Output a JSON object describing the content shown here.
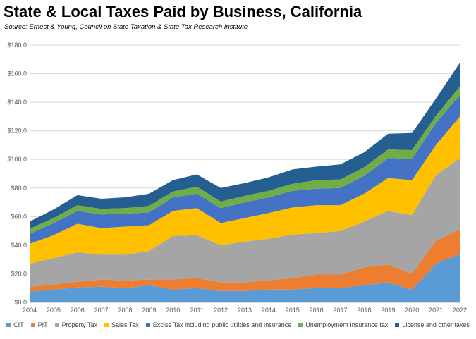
{
  "chart_data": {
    "type": "area",
    "stacked": true,
    "title": "State & Local Taxes Paid by Business, California",
    "subtitle": "Source:  Ernest & Young, Council on State Taxation & State Tax Research Institute",
    "xlabel": "",
    "ylabel": "",
    "ylim": [
      0,
      180
    ],
    "y_ticks": [
      "$0.0",
      "$20.0",
      "$40.0",
      "$60.0",
      "$80.0",
      "$100.0",
      "$120.0",
      "$140.0",
      "$160.0",
      "$180.0"
    ],
    "grid": true,
    "legend_position": "bottom",
    "categories": [
      "2004",
      "2005",
      "2006",
      "2007",
      "2008",
      "2009",
      "2010",
      "2011",
      "2012",
      "2013",
      "2014",
      "2015",
      "2016",
      "2017",
      "2018",
      "2019",
      "2020",
      "2021",
      "2022"
    ],
    "series": [
      {
        "name": "CIT",
        "color": "#5B9BD5",
        "values": [
          7.5,
          9,
          10.5,
          11,
          10,
          12,
          9,
          10,
          8,
          8,
          9,
          9,
          10,
          10,
          12,
          14,
          9,
          27,
          34
        ]
      },
      {
        "name": "PIT",
        "color": "#ED7D31",
        "values": [
          3.5,
          3.5,
          4,
          5,
          5.5,
          4,
          7,
          7,
          6,
          6,
          6.5,
          8,
          9.5,
          9.5,
          12.5,
          12.5,
          11,
          16,
          17
        ]
      },
      {
        "name": "Property Tax",
        "color": "#A5A5A5",
        "values": [
          16,
          18.5,
          20.5,
          17.5,
          18,
          20,
          30.5,
          30,
          26,
          28.5,
          29,
          30.5,
          29,
          30.5,
          32,
          37.5,
          41,
          46,
          50
        ]
      },
      {
        "name": "Sales Tax",
        "color": "#FFC000",
        "values": [
          14,
          16,
          20,
          18.5,
          19.5,
          18,
          17.5,
          19,
          15.5,
          16.5,
          18,
          19,
          19.5,
          18,
          19.5,
          23,
          24.5,
          21,
          29
        ]
      },
      {
        "name": "Excise Tax including public utilities and Insurance",
        "color": "#4472C4",
        "values": [
          7,
          8.5,
          9,
          9.5,
          9,
          9,
          9.5,
          10,
          10.5,
          11,
          11,
          11.5,
          11.5,
          12,
          12.5,
          14,
          15,
          15.5,
          15
        ]
      },
      {
        "name": "Unemployment Insurance tax",
        "color": "#70AD47",
        "values": [
          3.5,
          3.5,
          4,
          4,
          4,
          4.5,
          4,
          5,
          4.5,
          4.5,
          4.5,
          5,
          6,
          6,
          6,
          6,
          6,
          5,
          6
        ]
      },
      {
        "name": "License and other taxes",
        "color": "#255E91",
        "values": [
          5,
          6,
          7,
          7,
          7.5,
          8.5,
          8,
          8.5,
          9.5,
          9,
          9.5,
          10,
          9.5,
          10.5,
          10.5,
          11,
          12,
          12,
          16.5
        ]
      }
    ]
  }
}
